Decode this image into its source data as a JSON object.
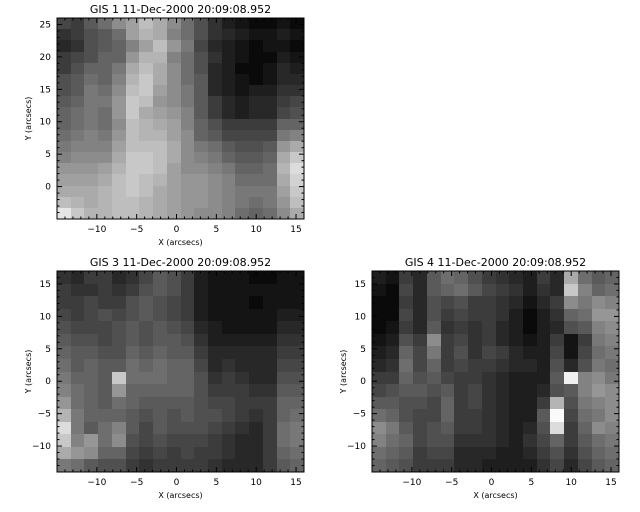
{
  "chart_data": [
    {
      "type": "heatmap",
      "title": "GIS 1 11-Dec-2000 20:09:08.952",
      "xlabel": "X (arcsecs)",
      "ylabel": "Y (arcsecs)",
      "xlim": [
        -15,
        16
      ],
      "ylim": [
        -5,
        26
      ],
      "xticks": [
        -10,
        -5,
        0,
        5,
        10,
        15
      ],
      "yticks": [
        0,
        5,
        10,
        15,
        20,
        25
      ],
      "cells": [
        [
          70,
          60,
          90,
          110,
          140,
          160,
          190,
          170,
          140,
          110,
          80,
          50,
          30,
          20,
          10,
          10,
          20,
          10
        ],
        [
          50,
          60,
          80,
          90,
          110,
          160,
          180,
          170,
          130,
          110,
          80,
          50,
          40,
          30,
          20,
          20,
          30,
          20
        ],
        [
          40,
          50,
          80,
          90,
          100,
          130,
          160,
          190,
          150,
          120,
          70,
          40,
          30,
          20,
          10,
          20,
          20,
          10
        ],
        [
          60,
          70,
          80,
          100,
          100,
          150,
          180,
          180,
          130,
          110,
          80,
          50,
          30,
          20,
          10,
          10,
          30,
          20
        ],
        [
          60,
          80,
          100,
          100,
          120,
          170,
          190,
          170,
          140,
          110,
          80,
          40,
          30,
          10,
          10,
          20,
          40,
          30
        ],
        [
          80,
          90,
          110,
          100,
          130,
          180,
          200,
          170,
          140,
          110,
          90,
          40,
          30,
          20,
          10,
          20,
          40,
          40
        ],
        [
          80,
          90,
          120,
          110,
          140,
          190,
          200,
          160,
          140,
          120,
          90,
          40,
          30,
          20,
          30,
          30,
          50,
          50
        ],
        [
          90,
          100,
          120,
          120,
          150,
          200,
          190,
          150,
          140,
          120,
          90,
          60,
          40,
          30,
          40,
          40,
          60,
          70
        ],
        [
          100,
          110,
          120,
          110,
          150,
          200,
          170,
          160,
          150,
          130,
          90,
          60,
          40,
          30,
          40,
          40,
          70,
          80
        ],
        [
          100,
          110,
          120,
          110,
          140,
          190,
          180,
          170,
          160,
          130,
          100,
          80,
          60,
          60,
          60,
          60,
          100,
          100
        ],
        [
          110,
          120,
          130,
          120,
          150,
          190,
          180,
          180,
          160,
          140,
          100,
          90,
          70,
          70,
          70,
          70,
          120,
          130
        ],
        [
          120,
          130,
          130,
          130,
          160,
          190,
          190,
          190,
          170,
          140,
          120,
          110,
          90,
          80,
          80,
          90,
          150,
          170
        ],
        [
          130,
          140,
          140,
          140,
          170,
          200,
          200,
          190,
          170,
          140,
          130,
          120,
          100,
          90,
          90,
          100,
          170,
          200
        ],
        [
          150,
          150,
          150,
          160,
          180,
          200,
          200,
          190,
          160,
          140,
          140,
          130,
          120,
          100,
          100,
          110,
          180,
          220
        ],
        [
          160,
          160,
          160,
          170,
          190,
          200,
          190,
          180,
          160,
          150,
          150,
          140,
          130,
          110,
          110,
          110,
          170,
          210
        ],
        [
          170,
          170,
          170,
          180,
          190,
          200,
          190,
          170,
          160,
          150,
          150,
          140,
          130,
          120,
          120,
          120,
          160,
          200
        ],
        [
          190,
          180,
          170,
          180,
          190,
          190,
          180,
          170,
          160,
          150,
          150,
          140,
          130,
          120,
          110,
          120,
          150,
          190
        ],
        [
          230,
          200,
          180,
          180,
          190,
          190,
          180,
          170,
          160,
          150,
          140,
          140,
          130,
          110,
          100,
          110,
          140,
          170
        ]
      ]
    },
    {
      "type": "heatmap",
      "title": "GIS 3 11-Dec-2000 20:09:08.952",
      "xlabel": "X (arcsecs)",
      "ylabel": "Y (arcsecs)",
      "xlim": [
        -15,
        16
      ],
      "ylim": [
        -14,
        17
      ],
      "xticks": [
        -10,
        -5,
        0,
        5,
        10,
        15
      ],
      "yticks": [
        -10,
        -5,
        0,
        5,
        10,
        15
      ],
      "cells": [
        [
          50,
          40,
          60,
          60,
          40,
          50,
          70,
          90,
          80,
          60,
          30,
          20,
          20,
          20,
          10,
          10,
          20,
          20
        ],
        [
          60,
          50,
          50,
          60,
          50,
          60,
          80,
          90,
          80,
          60,
          30,
          20,
          20,
          20,
          20,
          20,
          20,
          20
        ],
        [
          60,
          60,
          70,
          60,
          60,
          80,
          90,
          80,
          70,
          60,
          30,
          20,
          20,
          20,
          10,
          20,
          20,
          20
        ],
        [
          70,
          60,
          70,
          80,
          70,
          80,
          90,
          80,
          70,
          60,
          30,
          20,
          20,
          20,
          20,
          20,
          30,
          30
        ],
        [
          80,
          70,
          70,
          70,
          80,
          90,
          80,
          90,
          80,
          70,
          40,
          30,
          20,
          20,
          20,
          20,
          40,
          40
        ],
        [
          90,
          80,
          80,
          70,
          80,
          90,
          80,
          90,
          90,
          80,
          50,
          30,
          30,
          30,
          30,
          30,
          50,
          50
        ],
        [
          100,
          90,
          90,
          80,
          80,
          100,
          90,
          100,
          90,
          90,
          60,
          40,
          40,
          40,
          40,
          40,
          60,
          60
        ],
        [
          110,
          90,
          100,
          90,
          90,
          110,
          100,
          110,
          100,
          100,
          70,
          40,
          50,
          40,
          40,
          40,
          70,
          70
        ],
        [
          120,
          100,
          100,
          90,
          200,
          110,
          110,
          110,
          100,
          100,
          80,
          50,
          60,
          50,
          40,
          40,
          80,
          80
        ],
        [
          130,
          110,
          100,
          90,
          150,
          100,
          100,
          100,
          100,
          100,
          80,
          60,
          60,
          60,
          50,
          50,
          90,
          90
        ],
        [
          150,
          110,
          100,
          90,
          110,
          100,
          90,
          90,
          90,
          90,
          80,
          70,
          70,
          60,
          60,
          60,
          100,
          100
        ],
        [
          180,
          120,
          100,
          100,
          100,
          90,
          80,
          90,
          80,
          90,
          80,
          80,
          70,
          60,
          50,
          60,
          100,
          110
        ],
        [
          220,
          120,
          90,
          110,
          130,
          90,
          70,
          90,
          80,
          80,
          80,
          70,
          60,
          50,
          40,
          60,
          110,
          120
        ],
        [
          200,
          130,
          150,
          110,
          140,
          80,
          70,
          80,
          70,
          70,
          70,
          60,
          50,
          40,
          40,
          60,
          110,
          120
        ],
        [
          170,
          150,
          140,
          100,
          100,
          70,
          60,
          70,
          60,
          70,
          60,
          60,
          50,
          40,
          40,
          60,
          100,
          110
        ],
        [
          120,
          110,
          90,
          80,
          80,
          60,
          50,
          60,
          60,
          60,
          60,
          50,
          40,
          40,
          40,
          60,
          90,
          100
        ]
      ]
    },
    {
      "type": "heatmap",
      "title": "GIS 4 11-Dec-2000 20:09:08.952",
      "xlabel": "X (arcsecs)",
      "ylabel": "Y (arcsecs)",
      "xlim": [
        -15,
        16
      ],
      "ylim": [
        -14,
        17
      ],
      "xticks": [
        -10,
        -5,
        0,
        5,
        10,
        15
      ],
      "yticks": [
        -10,
        -5,
        0,
        5,
        10,
        15
      ],
      "cells": [
        [
          30,
          20,
          60,
          40,
          90,
          110,
          100,
          80,
          60,
          50,
          40,
          30,
          60,
          40,
          170,
          110,
          90,
          100
        ],
        [
          20,
          10,
          70,
          40,
          90,
          100,
          110,
          90,
          70,
          60,
          50,
          30,
          50,
          40,
          200,
          130,
          100,
          110
        ],
        [
          10,
          10,
          60,
          40,
          80,
          70,
          80,
          60,
          60,
          50,
          40,
          20,
          40,
          60,
          140,
          120,
          140,
          130
        ],
        [
          10,
          10,
          70,
          40,
          80,
          60,
          70,
          60,
          60,
          50,
          30,
          10,
          30,
          50,
          100,
          110,
          150,
          150
        ],
        [
          10,
          20,
          60,
          40,
          90,
          50,
          60,
          50,
          60,
          40,
          30,
          10,
          30,
          40,
          80,
          90,
          130,
          140
        ],
        [
          20,
          30,
          80,
          60,
          140,
          60,
          70,
          50,
          60,
          40,
          30,
          20,
          30,
          60,
          20,
          60,
          120,
          130
        ],
        [
          30,
          40,
          100,
          70,
          120,
          60,
          80,
          50,
          70,
          60,
          40,
          30,
          30,
          70,
          20,
          70,
          110,
          120
        ],
        [
          40,
          50,
          110,
          70,
          100,
          60,
          70,
          60,
          60,
          50,
          40,
          40,
          30,
          80,
          40,
          80,
          120,
          110
        ],
        [
          60,
          60,
          100,
          80,
          90,
          70,
          60,
          60,
          50,
          40,
          30,
          30,
          30,
          90,
          240,
          130,
          140,
          120
        ],
        [
          70,
          80,
          90,
          90,
          80,
          90,
          60,
          70,
          50,
          40,
          30,
          30,
          40,
          80,
          90,
          130,
          150,
          140
        ],
        [
          90,
          90,
          80,
          80,
          70,
          100,
          60,
          70,
          50,
          40,
          30,
          30,
          60,
          180,
          80,
          120,
          130,
          140
        ],
        [
          110,
          100,
          80,
          70,
          70,
          100,
          60,
          60,
          50,
          40,
          30,
          30,
          90,
          250,
          70,
          110,
          120,
          140
        ],
        [
          140,
          120,
          90,
          70,
          80,
          90,
          60,
          60,
          50,
          40,
          30,
          40,
          80,
          220,
          60,
          100,
          140,
          130
        ],
        [
          130,
          110,
          100,
          70,
          80,
          80,
          50,
          50,
          50,
          40,
          30,
          50,
          70,
          100,
          60,
          90,
          110,
          120
        ],
        [
          110,
          100,
          90,
          60,
          70,
          70,
          40,
          40,
          40,
          30,
          30,
          40,
          60,
          80,
          50,
          80,
          100,
          110
        ],
        [
          100,
          90,
          80,
          60,
          60,
          60,
          40,
          40,
          30,
          30,
          30,
          30,
          50,
          70,
          40,
          70,
          90,
          100
        ]
      ]
    }
  ]
}
